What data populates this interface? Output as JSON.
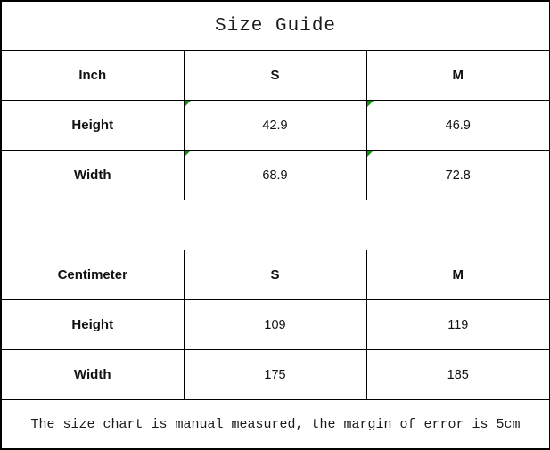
{
  "page": {
    "title": "Size Guide"
  },
  "colors": {
    "background": "#ffffff",
    "border": "#000000",
    "text": "#1a1a1a",
    "flag_triangle_green": "#0f930f"
  },
  "chart_data": {
    "type": "table",
    "title": "Size Guide",
    "layout": "two stacked unit sections separated by an empty spacer row; full-width title row on top and full-width footnote row on bottom; 3 equal columns; thin black gridlines with thicker outer frame",
    "sections": [
      {
        "unit_label": "Inch",
        "columns": [
          "S",
          "M"
        ],
        "rows": [
          {
            "label": "Height",
            "values": [
              "42.9",
              "46.9"
            ]
          },
          {
            "label": "Width",
            "values": [
              "68.9",
              "72.8"
            ]
          }
        ],
        "value_cells_have_green_corner_flag": true
      },
      {
        "unit_label": "Centimeter",
        "columns": [
          "S",
          "M"
        ],
        "rows": [
          {
            "label": "Height",
            "values": [
              "109",
              "119"
            ]
          },
          {
            "label": "Width",
            "values": [
              "175",
              "185"
            ]
          }
        ],
        "value_cells_have_green_corner_flag": false
      }
    ],
    "footnote": "The size chart is manual measured, the margin of error is 5cm"
  }
}
